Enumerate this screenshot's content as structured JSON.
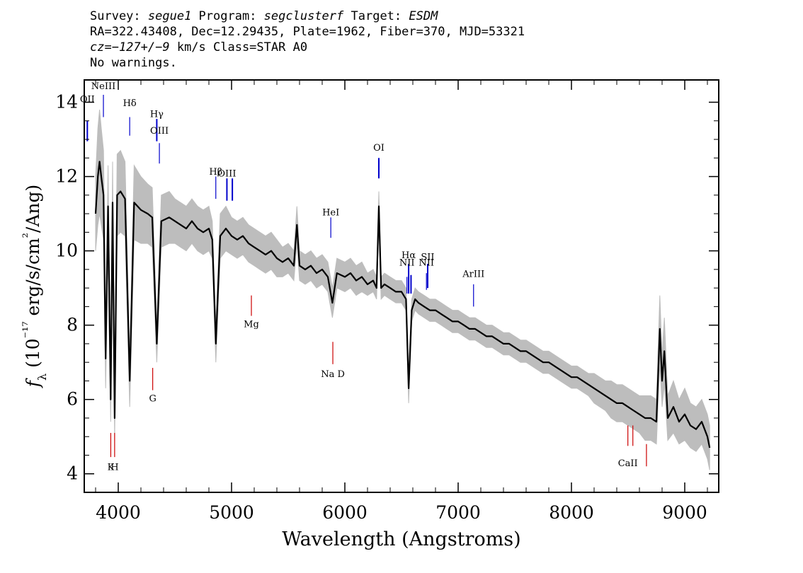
{
  "header": {
    "survey_label": "Survey: ",
    "survey": "segue1",
    "program_label": " Program: ",
    "program": "segclusterf",
    "target_label": " Target: ",
    "target": "ESDM",
    "line2": "RA=322.43408, Dec=12.29435, Plate=1962, Fiber=370, MJD=53321",
    "cz": "cz=−127+/−9",
    "cz_rest": " km/s Class=STAR A0",
    "warnings": "No warnings."
  },
  "chart_data": {
    "type": "line",
    "title": "",
    "xlabel": "Wavelength (Angstroms)",
    "ylabel": "fλ (10⁻¹⁷ erg/s/cm²/Ang)",
    "xlim": [
      3700,
      9300
    ],
    "ylim": [
      3.5,
      14.6
    ],
    "xticks": [
      4000,
      5000,
      6000,
      7000,
      8000,
      9000
    ],
    "yticks": [
      4,
      6,
      8,
      10,
      12,
      14
    ],
    "grid": false,
    "colors": {
      "flux": "#000000",
      "error_band": "#bdbdbd",
      "emission": "#0000cc",
      "absorption": "#cc0000"
    },
    "series": [
      {
        "style": "smoothed flux",
        "x": [
          3800,
          3820,
          3835,
          3850,
          3870,
          3889,
          3910,
          3933,
          3950,
          3968,
          3990,
          4020,
          4060,
          4101,
          4140,
          4200,
          4260,
          4300,
          4340,
          4380,
          4450,
          4500,
          4550,
          4600,
          4650,
          4700,
          4750,
          4800,
          4830,
          4861,
          4900,
          4950,
          5000,
          5050,
          5100,
          5150,
          5200,
          5250,
          5300,
          5350,
          5400,
          5450,
          5500,
          5550,
          5577,
          5600,
          5650,
          5700,
          5750,
          5800,
          5850,
          5890,
          5930,
          6000,
          6050,
          6100,
          6150,
          6200,
          6250,
          6280,
          6300,
          6320,
          6350,
          6400,
          6450,
          6500,
          6540,
          6563,
          6590,
          6620,
          6650,
          6700,
          6750,
          6800,
          6850,
          6900,
          6950,
          7000,
          7050,
          7100,
          7150,
          7200,
          7250,
          7300,
          7350,
          7400,
          7450,
          7500,
          7550,
          7600,
          7650,
          7700,
          7750,
          7800,
          7850,
          7900,
          7950,
          8000,
          8050,
          8100,
          8150,
          8200,
          8250,
          8300,
          8350,
          8400,
          8450,
          8500,
          8550,
          8600,
          8650,
          8700,
          8750,
          8780,
          8800,
          8820,
          8850,
          8900,
          8950,
          9000,
          9050,
          9100,
          9150,
          9200,
          9220
        ],
        "y": [
          11.0,
          12.0,
          12.4,
          12.0,
          11.5,
          7.1,
          11.2,
          6.0,
          11.3,
          5.5,
          11.5,
          11.6,
          11.4,
          6.5,
          11.3,
          11.1,
          11.0,
          10.9,
          7.5,
          10.8,
          10.9,
          10.8,
          10.7,
          10.6,
          10.8,
          10.6,
          10.5,
          10.6,
          10.3,
          7.5,
          10.4,
          10.6,
          10.4,
          10.3,
          10.4,
          10.2,
          10.1,
          10.0,
          9.9,
          10.0,
          9.8,
          9.7,
          9.8,
          9.6,
          10.7,
          9.6,
          9.5,
          9.6,
          9.4,
          9.5,
          9.3,
          8.6,
          9.4,
          9.3,
          9.4,
          9.2,
          9.3,
          9.1,
          9.2,
          9.0,
          11.2,
          9.0,
          9.1,
          9.0,
          8.9,
          8.9,
          8.7,
          6.3,
          8.4,
          8.7,
          8.6,
          8.5,
          8.4,
          8.4,
          8.3,
          8.2,
          8.1,
          8.1,
          8.0,
          7.9,
          7.9,
          7.8,
          7.7,
          7.7,
          7.6,
          7.5,
          7.5,
          7.4,
          7.3,
          7.3,
          7.2,
          7.1,
          7.0,
          7.0,
          6.9,
          6.8,
          6.7,
          6.6,
          6.6,
          6.5,
          6.4,
          6.3,
          6.2,
          6.1,
          6.0,
          5.9,
          5.9,
          5.8,
          5.7,
          5.6,
          5.5,
          5.5,
          5.4,
          7.9,
          6.5,
          7.3,
          5.5,
          5.8,
          5.4,
          5.6,
          5.3,
          5.2,
          5.4,
          5.0,
          4.7
        ]
      }
    ],
    "error_band_y": [
      1.0,
      1.3,
      1.4,
      1.3,
      1.2,
      0.8,
      1.1,
      0.6,
      1.1,
      0.6,
      1.1,
      1.1,
      1.0,
      0.7,
      1.0,
      0.9,
      0.8,
      0.8,
      0.5,
      0.7,
      0.7,
      0.6,
      0.6,
      0.6,
      0.6,
      0.6,
      0.6,
      0.6,
      0.5,
      0.5,
      0.6,
      0.6,
      0.5,
      0.5,
      0.5,
      0.5,
      0.5,
      0.5,
      0.5,
      0.5,
      0.5,
      0.4,
      0.4,
      0.4,
      0.5,
      0.4,
      0.4,
      0.4,
      0.4,
      0.4,
      0.4,
      0.4,
      0.4,
      0.4,
      0.4,
      0.4,
      0.4,
      0.3,
      0.3,
      0.3,
      0.4,
      0.3,
      0.3,
      0.3,
      0.3,
      0.3,
      0.3,
      0.4,
      0.3,
      0.3,
      0.3,
      0.3,
      0.3,
      0.3,
      0.3,
      0.3,
      0.3,
      0.3,
      0.3,
      0.3,
      0.3,
      0.3,
      0.3,
      0.3,
      0.3,
      0.3,
      0.3,
      0.3,
      0.3,
      0.3,
      0.3,
      0.3,
      0.3,
      0.3,
      0.3,
      0.3,
      0.3,
      0.3,
      0.3,
      0.3,
      0.3,
      0.4,
      0.4,
      0.4,
      0.5,
      0.5,
      0.5,
      0.5,
      0.5,
      0.5,
      0.6,
      0.6,
      0.6,
      0.9,
      0.7,
      0.9,
      0.6,
      0.7,
      0.6,
      0.7,
      0.6,
      0.6,
      0.6,
      0.6,
      0.6
    ],
    "line_markers": [
      {
        "label": "OII",
        "wavelength": 3727,
        "kind": "emission",
        "y0": 12.95,
        "y1": 13.5,
        "label_y": 14.0,
        "thick": true
      },
      {
        "label": "NeIII",
        "wavelength": 3869,
        "kind": "emission",
        "y0": 13.6,
        "y1": 14.2,
        "label_y": 14.35
      },
      {
        "label": "Hδ",
        "wavelength": 4101,
        "kind": "emission",
        "y0": 13.1,
        "y1": 13.6,
        "label_y": 13.9
      },
      {
        "label": "Hγ",
        "wavelength": 4340,
        "kind": "emission",
        "y0": 12.95,
        "y1": 13.55,
        "label_y": 13.6,
        "thick": true
      },
      {
        "label": "OIII",
        "wavelength": 4363,
        "kind": "emission",
        "y0": 12.35,
        "y1": 12.9,
        "label_y": 13.15
      },
      {
        "label": "Hβ",
        "wavelength": 4861,
        "kind": "emission",
        "y0": 11.4,
        "y1": 12.0,
        "label_y": 12.05
      },
      {
        "label": "OIII",
        "wavelength": 4959,
        "kind": "emission",
        "y0": 11.35,
        "y1": 11.95,
        "label_y": 12.0,
        "thick": true
      },
      {
        "label": "",
        "wavelength": 5007,
        "kind": "emission",
        "y0": 11.35,
        "y1": 11.95,
        "thick": true
      },
      {
        "label": "OI",
        "wavelength": 6300,
        "kind": "emission",
        "y0": 11.95,
        "y1": 12.5,
        "label_y": 12.7,
        "thick": true
      },
      {
        "label": "HeI",
        "wavelength": 5876,
        "kind": "emission",
        "y0": 10.35,
        "y1": 10.9,
        "label_y": 10.95
      },
      {
        "label": "NII",
        "wavelength": 6548,
        "kind": "emission",
        "y0": 8.85,
        "y1": 9.3,
        "label_y": 9.6
      },
      {
        "label": "Hα",
        "wavelength": 6563,
        "kind": "emission",
        "y0": 8.85,
        "y1": 9.65,
        "label_y": 9.8,
        "thick": true
      },
      {
        "label": "",
        "wavelength": 6584,
        "kind": "emission",
        "y0": 8.85,
        "y1": 9.35,
        "thick": true
      },
      {
        "label": "NII",
        "wavelength": 6720,
        "kind": "emission",
        "y0": 8.95,
        "y1": 9.4,
        "label_y": 9.6
      },
      {
        "label": "SII",
        "wavelength": 6731,
        "kind": "emission",
        "y0": 9.0,
        "y1": 9.65,
        "label_y": 9.75,
        "thick": true
      },
      {
        "label": "ArIII",
        "wavelength": 7136,
        "kind": "emission",
        "y0": 8.5,
        "y1": 9.1,
        "label_y": 9.3
      },
      {
        "label": "K",
        "wavelength": 3934,
        "kind": "absorption",
        "y0": 4.45,
        "y1": 5.1,
        "label_y": 4.1
      },
      {
        "label": "H",
        "wavelength": 3968,
        "kind": "absorption",
        "y0": 4.45,
        "y1": 5.1,
        "label_y": 4.1
      },
      {
        "label": "G",
        "wavelength": 4304,
        "kind": "absorption",
        "y0": 6.25,
        "y1": 6.85,
        "label_y": 5.95
      },
      {
        "label": "Mg",
        "wavelength": 5175,
        "kind": "absorption",
        "y0": 8.25,
        "y1": 8.8,
        "label_y": 7.95
      },
      {
        "label": "Na D",
        "wavelength": 5894,
        "kind": "absorption",
        "y0": 6.95,
        "y1": 7.55,
        "label_y": 6.6
      },
      {
        "label": "CaII",
        "wavelength": 8498,
        "kind": "absorption",
        "y0": 4.75,
        "y1": 5.3,
        "label_y": 4.2
      },
      {
        "label": "",
        "wavelength": 8542,
        "kind": "absorption",
        "y0": 4.75,
        "y1": 5.3
      },
      {
        "label": "",
        "wavelength": 8662,
        "kind": "absorption",
        "y0": 4.2,
        "y1": 4.8
      }
    ]
  }
}
